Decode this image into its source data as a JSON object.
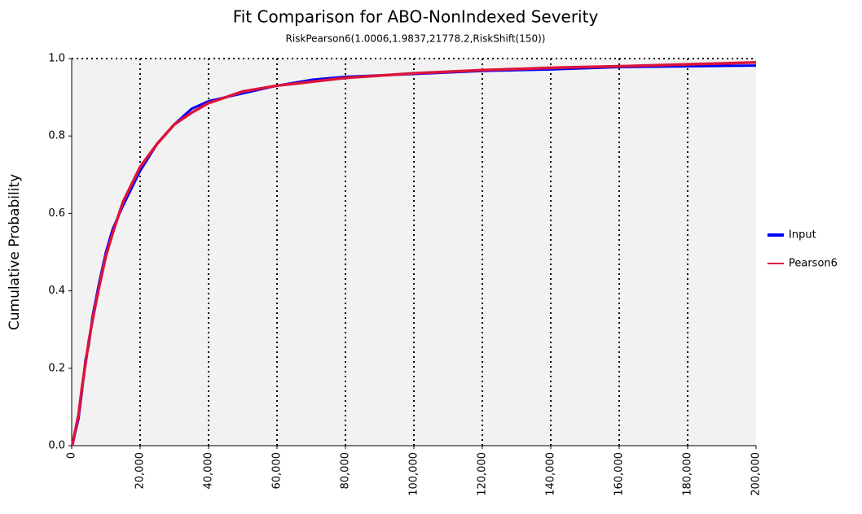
{
  "chart_data": {
    "type": "line",
    "title": "Fit Comparison for ABO-NonIndexed Severity",
    "subtitle": "RiskPearson6(1.0006,1.9837,21778.2,RiskShift(150))",
    "y_label": "Cumulative Probability",
    "x": [
      150,
      2000,
      3000,
      4000,
      5000,
      6000,
      8000,
      10000,
      12000,
      15000,
      20000,
      25000,
      30000,
      35000,
      40000,
      50000,
      60000,
      70000,
      80000,
      100000,
      120000,
      140000,
      160000,
      180000,
      200000
    ],
    "series": [
      {
        "name": "Input",
        "color": "#0000ff",
        "values": [
          0,
          0.07,
          0.14,
          0.22,
          0.26,
          0.33,
          0.42,
          0.5,
          0.56,
          0.62,
          0.71,
          0.78,
          0.83,
          0.87,
          0.89,
          0.91,
          0.93,
          0.945,
          0.953,
          0.96,
          0.968,
          0.972,
          0.978,
          0.98,
          0.982
        ]
      },
      {
        "name": "Pearson6",
        "color": "#dc143c",
        "values": [
          0,
          0.08,
          0.15,
          0.21,
          0.27,
          0.32,
          0.41,
          0.49,
          0.55,
          0.63,
          0.72,
          0.78,
          0.83,
          0.86,
          0.885,
          0.915,
          0.93,
          0.94,
          0.95,
          0.962,
          0.97,
          0.976,
          0.98,
          0.985,
          0.99
        ]
      }
    ],
    "xlim": [
      0,
      200000
    ],
    "xticks": [
      0,
      {
        "value": 20000,
        "label": "20,000"
      },
      {
        "value": 40000,
        "label": "40,000"
      },
      {
        "value": 60000,
        "label": "60,000"
      },
      {
        "value": 80000,
        "label": "80,000"
      },
      {
        "value": 100000,
        "label": "100,000"
      },
      {
        "value": 120000,
        "label": "120,000"
      },
      {
        "value": 140000,
        "label": "140,000"
      },
      {
        "value": 160000,
        "label": "160,000"
      },
      {
        "value": 180000,
        "label": "180,000"
      },
      {
        "value": 200000,
        "label": "200,000"
      }
    ],
    "ylim": [
      0,
      1
    ],
    "yticks": [
      {
        "value": 0,
        "label": "0.0"
      },
      0.2,
      0.4,
      0.6,
      0.8,
      {
        "value": 1,
        "label": "1.0"
      }
    ],
    "grid": true,
    "legend": "right"
  }
}
